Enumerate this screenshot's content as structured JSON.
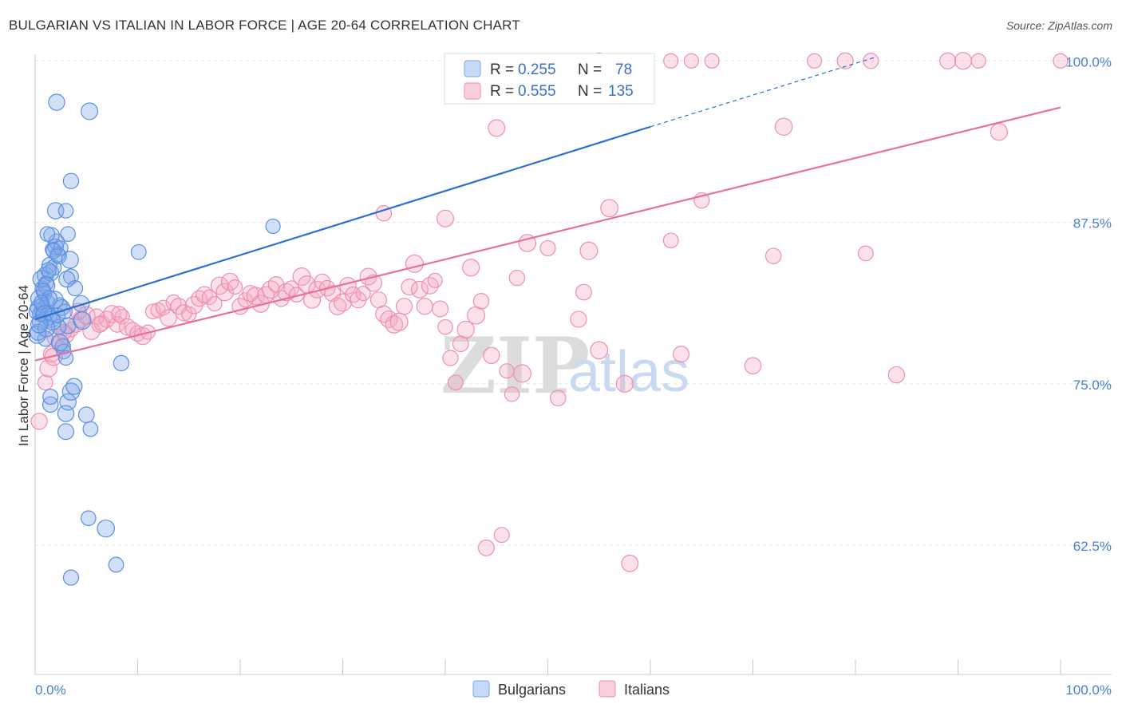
{
  "title": "BULGARIAN VS ITALIAN IN LABOR FORCE | AGE 20-64 CORRELATION CHART",
  "source": "Source: ZipAtlas.com",
  "watermark": {
    "zip": "ZIP",
    "atlas": "atlas"
  },
  "colors": {
    "blue": "#5b8fe0",
    "blue_fill": "rgba(126,166,232,0.35)",
    "blue_line": "#2f6fd0",
    "pink": "#ee8fb0",
    "pink_fill": "rgba(244,168,196,0.35)",
    "pink_line": "#e8709a"
  },
  "legend": {
    "rows": [
      {
        "r_label": "R = ",
        "r_value": "0.255",
        "n_label": "N = ",
        "n_value": "78"
      },
      {
        "r_label": "R = ",
        "r_value": "0.555",
        "n_label": "N = ",
        "n_value": "135"
      }
    ]
  },
  "bottom_legend": [
    "Bulgarians",
    "Italians"
  ],
  "chart_data": {
    "type": "scatter",
    "title": "BULGARIAN VS ITALIAN IN LABOR FORCE | AGE 20-64 CORRELATION CHART",
    "xlabel": "",
    "ylabel": "In Labor Force | Age 20-64",
    "xlim": [
      0,
      100
    ],
    "ylim": [
      52.5,
      101.5
    ],
    "x_tick_labels": [
      "0.0%",
      "100.0%"
    ],
    "y_ticks": [
      62.5,
      75.0,
      87.5,
      100.0
    ],
    "y_tick_labels": [
      "62.5%",
      "75.0%",
      "87.5%",
      "100.0%"
    ],
    "series": [
      {
        "name": "Bulgarians",
        "R": 0.255,
        "N": 78,
        "trend": {
          "x0": 0,
          "y0": 80.0,
          "x1": 60,
          "y1": 94.9,
          "dash_x1": 82,
          "dash_y1": 100.3
        },
        "points": [
          [
            0.3,
            80.9
          ],
          [
            0.5,
            80.4
          ],
          [
            0.4,
            81.6
          ],
          [
            0.7,
            82.4
          ],
          [
            0.6,
            83.1
          ],
          [
            0.8,
            80.7
          ],
          [
            1.0,
            83.4
          ],
          [
            1.1,
            82.8
          ],
          [
            1.2,
            81.3
          ],
          [
            1.4,
            84.2
          ],
          [
            1.5,
            83.6
          ],
          [
            1.7,
            85.4
          ],
          [
            1.8,
            84.0
          ],
          [
            2.0,
            85.6
          ],
          [
            2.2,
            85.0
          ],
          [
            2.3,
            84.9
          ],
          [
            2.4,
            81.1
          ],
          [
            2.6,
            80.9
          ],
          [
            1.3,
            80.2
          ],
          [
            1.6,
            80.0
          ],
          [
            0.2,
            80.6
          ],
          [
            0.9,
            82.0
          ],
          [
            1.9,
            81.5
          ],
          [
            0.5,
            79.8
          ],
          [
            1.0,
            78.5
          ],
          [
            0.3,
            79.0
          ],
          [
            0.2,
            78.8
          ],
          [
            2.1,
            86.0
          ],
          [
            2.5,
            85.5
          ],
          [
            1.6,
            86.5
          ],
          [
            3.5,
            83.3
          ],
          [
            3.9,
            82.4
          ],
          [
            3.1,
            83.1
          ],
          [
            3.4,
            84.6
          ],
          [
            2.7,
            77.9
          ],
          [
            2.8,
            77.5
          ],
          [
            3.0,
            77.0
          ],
          [
            3.2,
            79.5
          ],
          [
            4.5,
            81.2
          ],
          [
            2.3,
            79.4
          ],
          [
            1.2,
            86.6
          ],
          [
            1.8,
            85.3
          ],
          [
            2.0,
            88.4
          ],
          [
            3.0,
            88.4
          ],
          [
            3.5,
            90.7
          ],
          [
            5.3,
            96.1
          ],
          [
            2.1,
            96.8
          ],
          [
            3.2,
            86.6
          ],
          [
            1.5,
            73.4
          ],
          [
            1.5,
            74.0
          ],
          [
            3.0,
            72.7
          ],
          [
            3.2,
            73.6
          ],
          [
            3.5,
            74.4
          ],
          [
            3.8,
            74.8
          ],
          [
            3.0,
            71.3
          ],
          [
            5.0,
            72.6
          ],
          [
            5.4,
            71.5
          ],
          [
            8.4,
            76.6
          ],
          [
            5.2,
            64.6
          ],
          [
            6.9,
            63.8
          ],
          [
            7.9,
            61.0
          ],
          [
            3.5,
            60.0
          ],
          [
            10.1,
            85.2
          ],
          [
            23.2,
            87.2
          ],
          [
            4.6,
            79.9
          ],
          [
            2.4,
            78.2
          ],
          [
            0.7,
            81.1
          ],
          [
            1.1,
            82.6
          ],
          [
            1.3,
            83.8
          ],
          [
            0.8,
            82.2
          ],
          [
            1.4,
            81.6
          ],
          [
            0.6,
            81.3
          ],
          [
            0.9,
            80.4
          ],
          [
            1.7,
            79.8
          ],
          [
            2.2,
            80.3
          ],
          [
            1.1,
            79.3
          ],
          [
            0.4,
            79.6
          ],
          [
            2.9,
            80.6
          ]
        ]
      },
      {
        "name": "Italians",
        "R": 0.555,
        "N": 135,
        "trend": {
          "x0": 0,
          "y0": 76.8,
          "x1": 100,
          "y1": 96.4
        },
        "points": [
          [
            0.4,
            72.1
          ],
          [
            1.0,
            75.1
          ],
          [
            1.3,
            76.2
          ],
          [
            1.6,
            77.3
          ],
          [
            2.0,
            78.6
          ],
          [
            2.5,
            78.1
          ],
          [
            3.0,
            78.8
          ],
          [
            3.5,
            79.2
          ],
          [
            4.0,
            79.6
          ],
          [
            4.5,
            80.0
          ],
          [
            5.0,
            80.3
          ],
          [
            5.5,
            79.1
          ],
          [
            6.0,
            80.2
          ],
          [
            6.5,
            79.7
          ],
          [
            7.0,
            80.0
          ],
          [
            7.5,
            80.4
          ],
          [
            8.0,
            79.6
          ],
          [
            8.5,
            80.2
          ],
          [
            9.0,
            79.4
          ],
          [
            9.5,
            79.2
          ],
          [
            10.0,
            78.9
          ],
          [
            10.5,
            78.7
          ],
          [
            11.0,
            79.0
          ],
          [
            11.5,
            80.6
          ],
          [
            12.0,
            80.7
          ],
          [
            12.5,
            80.9
          ],
          [
            13.0,
            80.1
          ],
          [
            13.5,
            81.3
          ],
          [
            14.0,
            81.0
          ],
          [
            14.5,
            80.5
          ],
          [
            15.0,
            80.4
          ],
          [
            15.5,
            81.1
          ],
          [
            16.0,
            81.6
          ],
          [
            16.5,
            81.9
          ],
          [
            17.0,
            81.7
          ],
          [
            17.5,
            81.2
          ],
          [
            18.0,
            82.6
          ],
          [
            18.5,
            82.1
          ],
          [
            19.0,
            82.9
          ],
          [
            19.5,
            82.5
          ],
          [
            20.0,
            81.0
          ],
          [
            20.5,
            81.5
          ],
          [
            21.0,
            82.0
          ],
          [
            21.5,
            81.8
          ],
          [
            22.0,
            81.2
          ],
          [
            22.5,
            81.9
          ],
          [
            23.0,
            82.3
          ],
          [
            23.5,
            82.7
          ],
          [
            24.0,
            81.6
          ],
          [
            24.5,
            82.1
          ],
          [
            25.0,
            82.4
          ],
          [
            25.5,
            81.9
          ],
          [
            26.0,
            83.3
          ],
          [
            26.5,
            82.7
          ],
          [
            27.0,
            81.5
          ],
          [
            27.5,
            82.3
          ],
          [
            28.0,
            82.9
          ],
          [
            28.5,
            82.4
          ],
          [
            29.0,
            82.0
          ],
          [
            29.5,
            81.0
          ],
          [
            30.0,
            81.3
          ],
          [
            30.5,
            82.6
          ],
          [
            31.0,
            81.9
          ],
          [
            31.5,
            81.5
          ],
          [
            32.0,
            82.0
          ],
          [
            32.5,
            83.3
          ],
          [
            33.0,
            82.8
          ],
          [
            33.5,
            81.5
          ],
          [
            34.0,
            80.4
          ],
          [
            34.5,
            80.0
          ],
          [
            35.0,
            79.6
          ],
          [
            35.5,
            79.8
          ],
          [
            36.0,
            81.0
          ],
          [
            36.5,
            82.5
          ],
          [
            37.0,
            84.3
          ],
          [
            37.5,
            82.3
          ],
          [
            38.0,
            81.0
          ],
          [
            38.5,
            82.6
          ],
          [
            39.0,
            83.0
          ],
          [
            39.5,
            80.8
          ],
          [
            40.0,
            79.4
          ],
          [
            40.5,
            77.0
          ],
          [
            41.0,
            75.1
          ],
          [
            41.5,
            78.1
          ],
          [
            42.0,
            79.2
          ],
          [
            42.5,
            84.0
          ],
          [
            43.0,
            80.3
          ],
          [
            43.5,
            81.4
          ],
          [
            44.0,
            62.3
          ],
          [
            44.5,
            77.2
          ],
          [
            45.0,
            94.8
          ],
          [
            45.5,
            63.3
          ],
          [
            46.0,
            76.0
          ],
          [
            46.5,
            74.2
          ],
          [
            47.0,
            83.2
          ],
          [
            47.5,
            75.8
          ],
          [
            48.0,
            85.9
          ],
          [
            50.0,
            85.5
          ],
          [
            51.0,
            73.9
          ],
          [
            53.0,
            80.0
          ],
          [
            53.5,
            82.1
          ],
          [
            54.0,
            85.3
          ],
          [
            55.0,
            77.6
          ],
          [
            56.0,
            88.6
          ],
          [
            57.5,
            75.0
          ],
          [
            58.0,
            61.1
          ],
          [
            62.0,
            86.1
          ],
          [
            63.0,
            77.3
          ],
          [
            65.0,
            89.2
          ],
          [
            70.0,
            76.4
          ],
          [
            72.0,
            84.9
          ],
          [
            73.0,
            94.9
          ],
          [
            81.0,
            85.1
          ],
          [
            84.0,
            75.7
          ],
          [
            94.0,
            94.5
          ],
          [
            34.0,
            88.2
          ],
          [
            40.0,
            87.8
          ],
          [
            52.0,
            100.0
          ],
          [
            55.0,
            100.0
          ],
          [
            58.0,
            100.0
          ],
          [
            62.0,
            100.0
          ],
          [
            64.0,
            100.0
          ],
          [
            66.0,
            100.0
          ],
          [
            76.0,
            100.0
          ],
          [
            79.0,
            100.0
          ],
          [
            81.5,
            100.0
          ],
          [
            89.0,
            100.0
          ],
          [
            90.5,
            100.0
          ],
          [
            92.0,
            100.0
          ],
          [
            100.0,
            100.0
          ],
          [
            1.8,
            77.1
          ],
          [
            2.8,
            79.0
          ],
          [
            4.2,
            80.6
          ],
          [
            6.3,
            79.6
          ],
          [
            8.2,
            80.4
          ]
        ]
      }
    ]
  }
}
